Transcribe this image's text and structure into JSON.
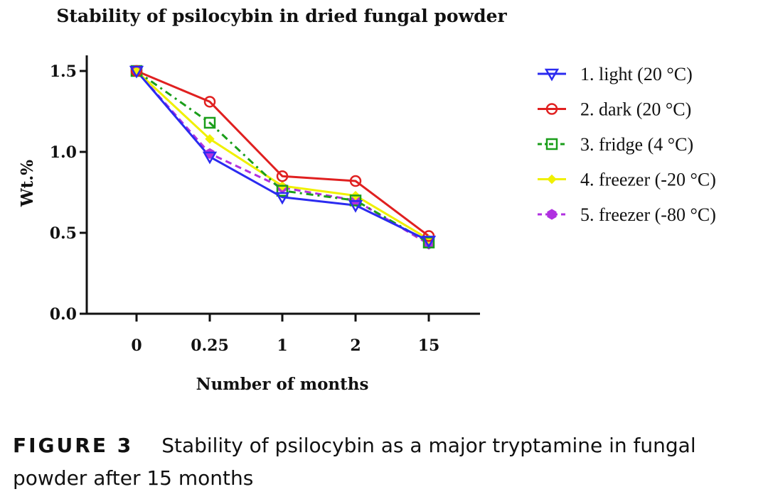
{
  "chart_data": {
    "type": "line",
    "title": "Stability of psilocybin in dried fungal powder",
    "xlabel": "Number of months",
    "ylabel": "Wt.%",
    "categories": [
      "0",
      "0.25",
      "1",
      "2",
      "15"
    ],
    "ylim": [
      0,
      1.5
    ],
    "yticks": [
      "0.0",
      "0.5",
      "1.0",
      "1.5"
    ],
    "grid": false,
    "legend_position": "right",
    "series": [
      {
        "name": "1. light (20 °C)",
        "color": "#2b2bf0",
        "marker": "triangle-down",
        "line": "solid",
        "values": [
          1.5,
          0.97,
          0.72,
          0.67,
          0.45
        ]
      },
      {
        "name": "2. dark (20 °C)",
        "color": "#e02020",
        "marker": "circle",
        "line": "solid",
        "values": [
          1.5,
          1.31,
          0.85,
          0.82,
          0.48
        ]
      },
      {
        "name": "3. fridge (4 °C)",
        "color": "#1a9e1a",
        "marker": "square",
        "line": "dashdot",
        "values": [
          1.5,
          1.18,
          0.76,
          0.7,
          0.44
        ]
      },
      {
        "name": "4. freezer (-20 °C)",
        "color": "#f0f000",
        "marker": "diamond",
        "line": "solid",
        "values": [
          1.5,
          1.08,
          0.79,
          0.73,
          0.46
        ]
      },
      {
        "name": "5. freezer (-80 °C)",
        "color": "#b030e0",
        "marker": "hexagon",
        "line": "dashed",
        "values": [
          1.5,
          0.99,
          0.78,
          0.7,
          0.43
        ]
      }
    ]
  },
  "caption": {
    "label": "FIGURE 3",
    "text": "Stability of psilocybin as a major tryptamine in fungal powder after 15 months"
  }
}
